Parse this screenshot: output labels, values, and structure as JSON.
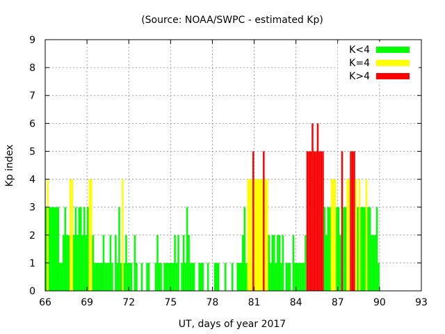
{
  "chart_data": {
    "type": "bar",
    "title": "(Source: NOAA/SWPC - estimated Kp)",
    "xlabel": "UT, days of year 2017",
    "ylabel": "Kp index",
    "xlim": [
      66,
      93
    ],
    "ylim": [
      0,
      9
    ],
    "xticks": [
      66,
      69,
      72,
      75,
      78,
      81,
      84,
      87,
      90,
      93
    ],
    "yticks": [
      0,
      1,
      2,
      3,
      4,
      5,
      6,
      7,
      8,
      9
    ],
    "grid": true,
    "legend_position": "top-right",
    "interval_days": 0.125,
    "start_day": 66,
    "legend": [
      {
        "label": "K<4",
        "color": "#00ff00"
      },
      {
        "label": "K=4",
        "color": "#ffff00"
      },
      {
        "label": "K>4",
        "color": "#ff0000"
      }
    ],
    "colors": {
      "below": "#00ff00",
      "equal": "#ffff00",
      "above": "#ff0000"
    },
    "kp": [
      3,
      4,
      3,
      3,
      3,
      3,
      3,
      3,
      1,
      1,
      2,
      3,
      2,
      2,
      4,
      4,
      2,
      3,
      2,
      3,
      3,
      2,
      3,
      2,
      3,
      4,
      4,
      2,
      1,
      1,
      1,
      1,
      1,
      2,
      1,
      1,
      1,
      2,
      1,
      0,
      2,
      1,
      3,
      1,
      4,
      1,
      2,
      1,
      1,
      1,
      0,
      2,
      1,
      0,
      0,
      1,
      0,
      0,
      1,
      1,
      0,
      0,
      0,
      1,
      2,
      1,
      1,
      0,
      1,
      1,
      1,
      1,
      1,
      1,
      2,
      1,
      2,
      0,
      1,
      2,
      1,
      3,
      2,
      1,
      1,
      1,
      0,
      0,
      1,
      1,
      1,
      0,
      0,
      1,
      0,
      0,
      0,
      1,
      1,
      1,
      0,
      0,
      0,
      1,
      0,
      0,
      0,
      1,
      0,
      0,
      1,
      1,
      1,
      2,
      3,
      1,
      4,
      4,
      4,
      5,
      4,
      4,
      4,
      4,
      4,
      5,
      4,
      4,
      2,
      1,
      2,
      2,
      1,
      2,
      2,
      1,
      2,
      0,
      1,
      1,
      1,
      0,
      2,
      1,
      1,
      1,
      1,
      1,
      1,
      2,
      5,
      5,
      5,
      6,
      5,
      5,
      6,
      5,
      5,
      5,
      3,
      2,
      3,
      3,
      4,
      4,
      4,
      3,
      3,
      2,
      5,
      3,
      3,
      4,
      4,
      5,
      5,
      5,
      4,
      3,
      4,
      3,
      3,
      3,
      4,
      3,
      3,
      2,
      2,
      2,
      3,
      1
    ]
  }
}
